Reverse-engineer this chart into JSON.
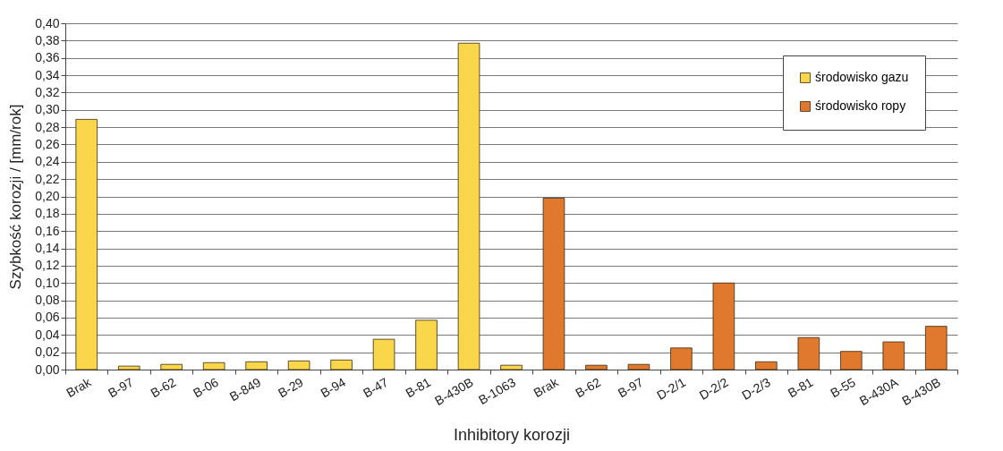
{
  "chart_data": {
    "type": "bar",
    "xlabel": "Inhibitory korozji",
    "ylabel": "Szybkość korozji / [mm/rok]",
    "categories": [
      "Brak",
      "B-97",
      "B-62",
      "B-06",
      "B-849",
      "B-29",
      "B-94",
      "B-47",
      "B-81",
      "B-430B",
      "B-1063",
      "Brak",
      "B-62",
      "B-97",
      "D-2/1",
      "D-2/2",
      "D-2/3",
      "B-81",
      "B-55",
      "B-430A",
      "B-430B"
    ],
    "series": [
      {
        "name": "środowisko gazu",
        "color": "#fad64a",
        "values": [
          0.289,
          0.004,
          0.006,
          0.008,
          0.009,
          0.01,
          0.011,
          0.035,
          0.057,
          0.377,
          0.005,
          null,
          null,
          null,
          null,
          null,
          null,
          null,
          null,
          null,
          null
        ]
      },
      {
        "name": "środowisko ropy",
        "color": "#e0792e",
        "values": [
          null,
          null,
          null,
          null,
          null,
          null,
          null,
          null,
          null,
          null,
          null,
          0.198,
          0.005,
          0.006,
          0.025,
          0.1,
          0.009,
          0.037,
          0.021,
          0.032,
          0.05
        ]
      }
    ],
    "ylim": [
      0,
      0.4
    ],
    "yticks": [
      {
        "value": 0,
        "label": "0,00"
      },
      {
        "value": 0.02,
        "label": "0,02"
      },
      {
        "value": 0.04,
        "label": "0,04"
      },
      {
        "value": 0.06,
        "label": "0,06"
      },
      {
        "value": 0.08,
        "label": "0,08"
      },
      {
        "value": 0.1,
        "label": "0,10"
      },
      {
        "value": 0.12,
        "label": "0,12"
      },
      {
        "value": 0.14,
        "label": "0,14"
      },
      {
        "value": 0.16,
        "label": "0,16"
      },
      {
        "value": 0.18,
        "label": "0,18"
      },
      {
        "value": 0.2,
        "label": "0,20"
      },
      {
        "value": 0.22,
        "label": "0,22"
      },
      {
        "value": 0.24,
        "label": "0,24"
      },
      {
        "value": 0.26,
        "label": "0,26"
      },
      {
        "value": 0.28,
        "label": "0,28"
      },
      {
        "value": 0.3,
        "label": "0,30"
      },
      {
        "value": 0.32,
        "label": "0,32"
      },
      {
        "value": 0.34,
        "label": "0,34"
      },
      {
        "value": 0.36,
        "label": "0,36"
      },
      {
        "value": 0.38,
        "label": "0,38"
      },
      {
        "value": 0.4,
        "label": "0,40"
      }
    ],
    "grid": "y",
    "legend": "top right"
  }
}
